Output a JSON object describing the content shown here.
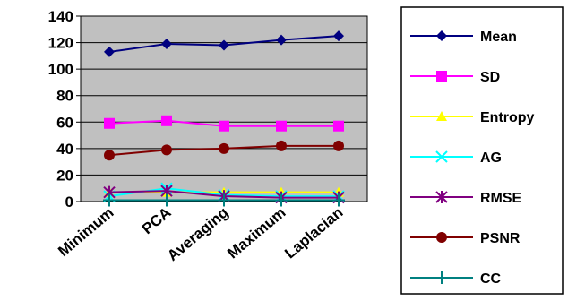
{
  "chart_data": {
    "type": "line",
    "categories": [
      "Minimum",
      "PCA",
      "Averaging",
      "Maximum",
      "Laplacian"
    ],
    "ylim": [
      0,
      140
    ],
    "yticks": [
      0,
      20,
      40,
      60,
      80,
      100,
      120,
      140
    ],
    "grid": true,
    "legend_position": "right",
    "plot_background": "#c0c0c0",
    "series": [
      {
        "name": "Mean",
        "values": [
          113,
          119,
          118,
          122,
          125
        ],
        "color": "#000080",
        "marker": "diamond"
      },
      {
        "name": "SD",
        "values": [
          59,
          61,
          57,
          57,
          57
        ],
        "color": "#ff00ff",
        "marker": "square"
      },
      {
        "name": "Entropy",
        "values": [
          7,
          7,
          7,
          7,
          7
        ],
        "color": "#ffff00",
        "marker": "triangle"
      },
      {
        "name": "AG",
        "values": [
          4,
          10,
          5,
          4,
          4
        ],
        "color": "#00ffff",
        "marker": "x"
      },
      {
        "name": "RMSE",
        "values": [
          7,
          8,
          4,
          3,
          3
        ],
        "color": "#800080",
        "marker": "asterisk"
      },
      {
        "name": "PSNR",
        "values": [
          35,
          39,
          40,
          42,
          42
        ],
        "color": "#800000",
        "marker": "circle"
      },
      {
        "name": "CC",
        "values": [
          1,
          1,
          1,
          1,
          1
        ],
        "color": "#008080",
        "marker": "plus"
      }
    ]
  }
}
